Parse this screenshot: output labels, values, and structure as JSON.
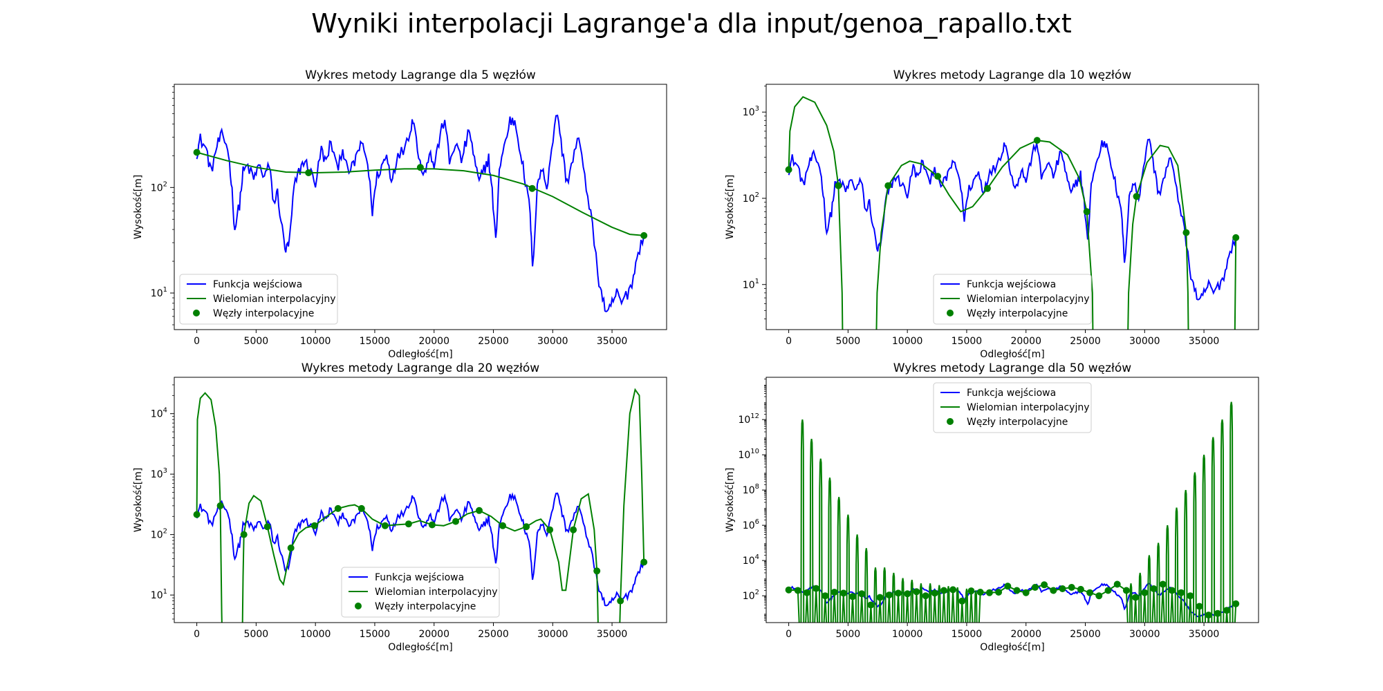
{
  "suptitle": "Wyniki interpolacji Lagrange'a dla input/genoa_rapallo.txt",
  "colors": {
    "function": "#0000ff",
    "polynomial": "#008000",
    "nodes": "#008000"
  },
  "chart_data": [
    {
      "type": "line",
      "title": "Wykres metody Lagrange dla 5 węzłów",
      "xlabel": "Odległość[m]",
      "ylabel": "Wysokość[m]",
      "yscale": "log",
      "xlim": [
        -1900,
        39600
      ],
      "ylim": [
        4.5,
        950
      ],
      "xticks": [
        0,
        5000,
        10000,
        15000,
        20000,
        25000,
        30000,
        35000
      ],
      "yticks": [
        {
          "value": 10,
          "base": "10",
          "exp": "1"
        },
        {
          "value": 100,
          "base": "10",
          "exp": "2"
        }
      ],
      "legend": {
        "position": "lower-left",
        "entries": [
          "Funkcja wejściowa",
          "Wielomian interpolacyjny",
          "Węzły interpolacyjne"
        ]
      },
      "nodes": {
        "x": [
          0,
          9422,
          18845,
          28267,
          37690
        ],
        "y": [
          215,
          138,
          155,
          98,
          35
        ]
      },
      "polynomial": [
        [
          0,
          215
        ],
        [
          2500,
          180
        ],
        [
          5000,
          155
        ],
        [
          7500,
          140
        ],
        [
          10000,
          138
        ],
        [
          12500,
          140
        ],
        [
          15000,
          146
        ],
        [
          17500,
          150
        ],
        [
          20000,
          150
        ],
        [
          22500,
          144
        ],
        [
          25000,
          130
        ],
        [
          27500,
          108
        ],
        [
          30000,
          82
        ],
        [
          32500,
          58
        ],
        [
          35000,
          42
        ],
        [
          36500,
          36
        ],
        [
          37690,
          35
        ]
      ]
    },
    {
      "type": "line",
      "title": "Wykres metody Lagrange dla 10 węzłów",
      "xlabel": "Odległość[m]",
      "ylabel": "Wysokość[m]",
      "yscale": "log",
      "xlim": [
        -1900,
        39600
      ],
      "ylim": [
        3,
        2100
      ],
      "xticks": [
        0,
        5000,
        10000,
        15000,
        20000,
        25000,
        30000,
        35000
      ],
      "yticks": [
        {
          "value": 10,
          "base": "10",
          "exp": "1"
        },
        {
          "value": 100,
          "base": "10",
          "exp": "2"
        },
        {
          "value": 1000,
          "base": "10",
          "exp": "3"
        }
      ],
      "legend": {
        "position": "lower-center",
        "entries": [
          "Funkcja wejściowa",
          "Wielomian interpolacyjny",
          "Węzły interpolacyjne"
        ]
      },
      "nodes": {
        "x": [
          0,
          4188,
          8376,
          12563,
          16751,
          20939,
          25127,
          29314,
          33502,
          37690
        ],
        "y": [
          215,
          140,
          140,
          180,
          130,
          470,
          70,
          105,
          40,
          35
        ]
      },
      "polynomial": [
        [
          0,
          215
        ],
        [
          100,
          600
        ],
        [
          500,
          1150
        ],
        [
          1200,
          1500
        ],
        [
          2200,
          1300
        ],
        [
          3200,
          700
        ],
        [
          3800,
          350
        ],
        [
          4188,
          140
        ],
        [
          4500,
          8
        ],
        [
          4600,
          0.5
        ],
        [
          7300,
          0.5
        ],
        [
          7450,
          8
        ],
        [
          7800,
          40
        ],
        [
          8376,
          140
        ],
        [
          9500,
          240
        ],
        [
          10200,
          270
        ],
        [
          11200,
          250
        ],
        [
          12563,
          180
        ],
        [
          13500,
          110
        ],
        [
          14500,
          70
        ],
        [
          15500,
          80
        ],
        [
          16751,
          130
        ],
        [
          18000,
          230
        ],
        [
          19500,
          380
        ],
        [
          20939,
          470
        ],
        [
          22000,
          450
        ],
        [
          23500,
          320
        ],
        [
          24500,
          170
        ],
        [
          25127,
          70
        ],
        [
          25600,
          8
        ],
        [
          25700,
          0.5
        ],
        [
          28500,
          0.5
        ],
        [
          28650,
          8
        ],
        [
          29000,
          50
        ],
        [
          29314,
          105
        ],
        [
          30200,
          260
        ],
        [
          31300,
          410
        ],
        [
          32000,
          390
        ],
        [
          32800,
          240
        ],
        [
          33502,
          40
        ],
        [
          33650,
          8
        ],
        [
          33750,
          0.5
        ],
        [
          37550,
          0.5
        ],
        [
          37650,
          10
        ],
        [
          37690,
          35
        ]
      ]
    },
    {
      "type": "line",
      "title": "Wykres metody Lagrange dla 20 węzłów",
      "xlabel": "Odległość[m]",
      "ylabel": "Wysokość[m]",
      "yscale": "log",
      "xlim": [
        -1900,
        39600
      ],
      "ylim": [
        3.5,
        40000
      ],
      "xticks": [
        0,
        5000,
        10000,
        15000,
        20000,
        25000,
        30000,
        35000
      ],
      "yticks": [
        {
          "value": 10,
          "base": "10",
          "exp": "1"
        },
        {
          "value": 100,
          "base": "10",
          "exp": "2"
        },
        {
          "value": 1000,
          "base": "10",
          "exp": "3"
        },
        {
          "value": 10000,
          "base": "10",
          "exp": "4"
        }
      ],
      "legend": {
        "position": "lower-center",
        "entries": [
          "Funkcja wejściowa",
          "Wielomian interpolacyjny",
          "Węzły interpolacyjne"
        ]
      },
      "nodes": {
        "x": [
          0,
          1984,
          3967,
          5951,
          7935,
          9918,
          11902,
          13886,
          15869,
          17853,
          19837,
          21821,
          23804,
          25788,
          27772,
          29755,
          31739,
          33723,
          35706,
          37690
        ],
        "y": [
          215,
          300,
          100,
          135,
          60,
          140,
          270,
          270,
          140,
          150,
          145,
          165,
          250,
          140,
          135,
          120,
          120,
          25,
          8,
          35
        ]
      },
      "polynomial": [
        [
          0,
          215
        ],
        [
          50,
          8000
        ],
        [
          300,
          18000
        ],
        [
          700,
          22000
        ],
        [
          1200,
          17000
        ],
        [
          1600,
          6000
        ],
        [
          1900,
          1000
        ],
        [
          1984,
          300
        ],
        [
          2100,
          5
        ],
        [
          2200,
          0.5
        ],
        [
          3800,
          0.5
        ],
        [
          3900,
          20
        ],
        [
          3967,
          100
        ],
        [
          4400,
          330
        ],
        [
          4800,
          440
        ],
        [
          5400,
          360
        ],
        [
          5951,
          135
        ],
        [
          6500,
          45
        ],
        [
          7000,
          18
        ],
        [
          7300,
          15
        ],
        [
          7935,
          60
        ],
        [
          8600,
          105
        ],
        [
          9200,
          130
        ],
        [
          9918,
          140
        ],
        [
          10800,
          190
        ],
        [
          11902,
          270
        ],
        [
          12800,
          300
        ],
        [
          13300,
          310
        ],
        [
          13886,
          270
        ],
        [
          14800,
          180
        ],
        [
          15869,
          140
        ],
        [
          16800,
          145
        ],
        [
          17853,
          150
        ],
        [
          18800,
          170
        ],
        [
          19837,
          145
        ],
        [
          20800,
          140
        ],
        [
          21821,
          165
        ],
        [
          22800,
          220
        ],
        [
          23804,
          250
        ],
        [
          24800,
          200
        ],
        [
          25788,
          140
        ],
        [
          26800,
          115
        ],
        [
          27772,
          135
        ],
        [
          28600,
          170
        ],
        [
          29000,
          180
        ],
        [
          29755,
          120
        ],
        [
          30500,
          35
        ],
        [
          30800,
          12
        ],
        [
          31100,
          12
        ],
        [
          31739,
          120
        ],
        [
          32400,
          390
        ],
        [
          33000,
          470
        ],
        [
          33500,
          120
        ],
        [
          33723,
          25
        ],
        [
          33800,
          6
        ],
        [
          33900,
          0.5
        ],
        [
          35600,
          0.5
        ],
        [
          35650,
          3
        ],
        [
          35706,
          8
        ],
        [
          36000,
          300
        ],
        [
          36500,
          10000
        ],
        [
          36950,
          25000
        ],
        [
          37300,
          20000
        ],
        [
          37500,
          1000
        ],
        [
          37690,
          35
        ]
      ]
    },
    {
      "type": "line",
      "title": "Wykres metody Lagrange dla 50 węzłów",
      "xlabel": "Odległość[m]",
      "ylabel": "Wysokość[m]",
      "yscale": "log",
      "xlim": [
        -1900,
        39600
      ],
      "ylim": [
        3,
        250000000000000
      ],
      "xticks": [
        0,
        5000,
        10000,
        15000,
        20000,
        25000,
        30000,
        35000
      ],
      "yticks": [
        {
          "value": 100,
          "base": "10",
          "exp": "2"
        },
        {
          "value": 10000,
          "base": "10",
          "exp": "4"
        },
        {
          "value": 1000000,
          "base": "10",
          "exp": "6"
        },
        {
          "value": 100000000,
          "base": "10",
          "exp": "8"
        },
        {
          "value": 10000000000,
          "base": "10",
          "exp": "10"
        },
        {
          "value": 1000000000000,
          "base": "10",
          "exp": "12"
        }
      ],
      "legend": {
        "position": "upper-center",
        "entries": [
          "Funkcja wejściowa",
          "Wielomian interpolacyjny",
          "Węzły interpolacyjne"
        ]
      },
      "nodes": {
        "x": [
          0,
          769,
          1538,
          2308,
          3077,
          3846,
          4615,
          5385,
          6154,
          6923,
          7692,
          8461,
          9231,
          10000,
          10769,
          11538,
          12308,
          13077,
          13846,
          14615,
          15384,
          16154,
          16923,
          17692,
          18461,
          19231,
          20000,
          20769,
          21538,
          22307,
          23077,
          23846,
          24615,
          25384,
          26154,
          26923,
          27692,
          28461,
          29230,
          30000,
          30769,
          31538,
          32307,
          33077,
          33846,
          34615,
          35384,
          36153,
          36923,
          37690
        ],
        "y": [
          215,
          200,
          150,
          260,
          100,
          160,
          140,
          90,
          130,
          30,
          80,
          110,
          140,
          130,
          170,
          100,
          140,
          200,
          220,
          50,
          190,
          160,
          150,
          160,
          350,
          200,
          150,
          300,
          420,
          200,
          250,
          300,
          230,
          150,
          100,
          200,
          450,
          200,
          80,
          150,
          250,
          450,
          200,
          150,
          100,
          25,
          8,
          10,
          15,
          35
        ]
      },
      "spikes": [
        [
          1153,
          1000000000000
        ],
        [
          1923,
          80000000000
        ],
        [
          2692,
          6000000000
        ],
        [
          3461,
          500000000
        ],
        [
          4230,
          40000000
        ],
        [
          5000,
          4000000
        ],
        [
          5769,
          300000
        ],
        [
          6538,
          50000
        ],
        [
          7307,
          4000
        ],
        [
          8076,
          4000
        ],
        [
          8846,
          2000
        ],
        [
          9615,
          1000
        ],
        [
          10384,
          800
        ],
        [
          11153,
          500
        ],
        [
          11923,
          500
        ],
        [
          12692,
          400
        ],
        [
          13461,
          350
        ],
        [
          14230,
          300
        ],
        [
          15000,
          250
        ],
        [
          15769,
          200
        ],
        [
          28846,
          500
        ],
        [
          29615,
          2000
        ],
        [
          30384,
          20000
        ],
        [
          31153,
          100000
        ],
        [
          31923,
          1000000
        ],
        [
          32692,
          10000000
        ],
        [
          33461,
          100000000
        ],
        [
          34230,
          1000000000
        ],
        [
          35000,
          10000000000
        ],
        [
          35769,
          100000000000
        ],
        [
          36538,
          1000000000000
        ],
        [
          37307,
          10000000000000
        ]
      ]
    }
  ]
}
